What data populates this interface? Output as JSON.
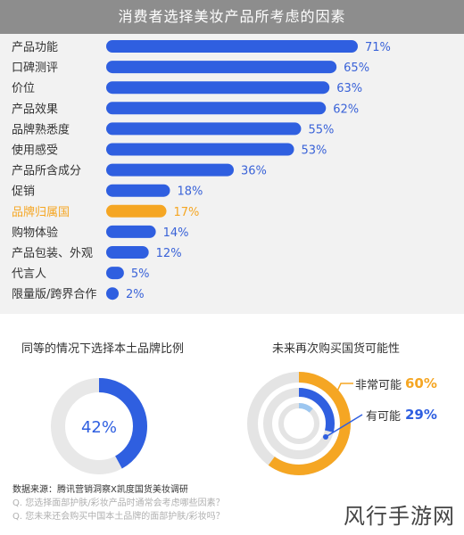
{
  "header": {
    "title": "消费者选择美妆产品所考虑的因素"
  },
  "chart_data": [
    {
      "type": "bar",
      "orientation": "horizontal",
      "title": "消费者选择美妆产品所考虑的因素",
      "categories": [
        "产品功能",
        "口碑测评",
        "价位",
        "产品效果",
        "品牌熟悉度",
        "使用感受",
        "产品所含成分",
        "促销",
        "品牌归属国",
        "购物体验",
        "产品包装、外观",
        "代言人",
        "限量版/跨界合作"
      ],
      "values": [
        71,
        65,
        63,
        62,
        55,
        53,
        36,
        18,
        17,
        14,
        12,
        5,
        2
      ],
      "value_labels": [
        "71%",
        "65%",
        "63%",
        "62%",
        "55%",
        "53%",
        "36%",
        "18%",
        "17%",
        "14%",
        "12%",
        "5%",
        "2%"
      ],
      "unit": "%",
      "highlight_index": 8,
      "colors": {
        "bar": "#2f5fe0",
        "highlight": "#f5a623",
        "label": "#3a63d8",
        "category": "#333333"
      }
    },
    {
      "type": "pie",
      "variant": "donut",
      "title": "同等的情况下选择本土品牌比例",
      "values": [
        42
      ],
      "value_labels": [
        "42%"
      ],
      "colors": {
        "fill": "#2f5fe0",
        "track": "#e8e8e8"
      }
    },
    {
      "type": "pie",
      "variant": "concentric-rings",
      "title": "未来再次购买国货可能性",
      "series": [
        {
          "name": "非常可能",
          "value": 60,
          "label": "60%",
          "color": "#f5a623"
        },
        {
          "name": "有可能",
          "value": 29,
          "label": "29%",
          "color": "#2f5fe0"
        }
      ]
    }
  ],
  "source": {
    "line": "数据来源：腾讯营销洞察X凯度国货美妆调研",
    "questions": [
      "Q. 您选择面部护肤/彩妆产品时通常会考虑哪些因素？",
      "Q. 您未来还会购买中国本土品牌的面部护肤/彩妆吗？"
    ]
  },
  "watermark": "风行手游网"
}
